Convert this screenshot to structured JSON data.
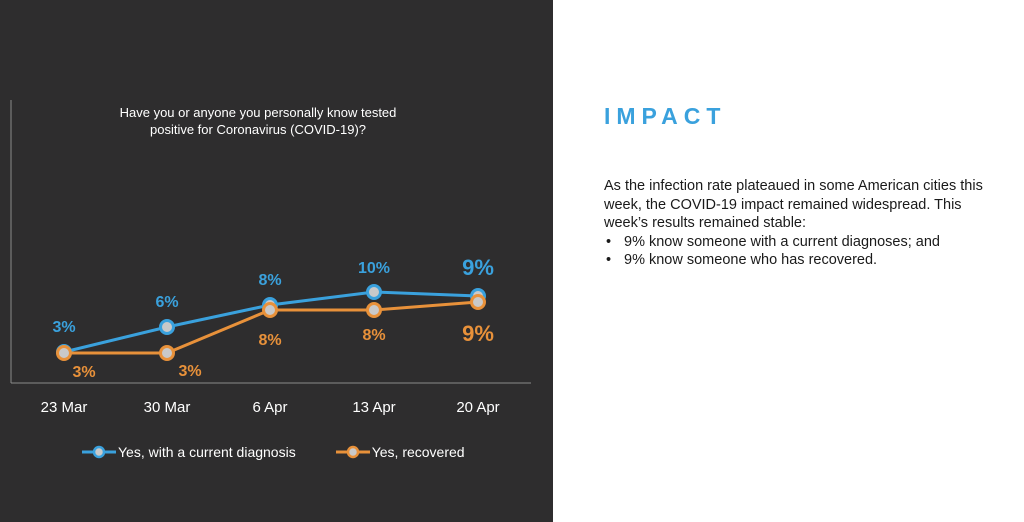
{
  "chart_data": {
    "type": "line",
    "title": "Have you or anyone you personally know tested positive for Coronavirus (COVID-19)?",
    "categories": [
      "23 Mar",
      "30 Mar",
      "6 Apr",
      "13 Apr",
      "20 Apr"
    ],
    "series": [
      {
        "name": "Yes, with a current diagnosis",
        "values": [
          3,
          6,
          8,
          10,
          9
        ],
        "labels": [
          "3%",
          "6%",
          "8%",
          "10%",
          "9%"
        ],
        "color": "#3aa1dd"
      },
      {
        "name": "Yes, recovered",
        "values": [
          3,
          3,
          8,
          8,
          9
        ],
        "labels": [
          "3%",
          "3%",
          "8%",
          "8%",
          "9%"
        ],
        "color": "#e8913a"
      }
    ],
    "legend_position": "bottom",
    "grid": false
  },
  "impact": {
    "heading": "IMPACT",
    "paragraph": "As the infection rate plateaued in some American cities this week, the COVID-19 impact remained widespread.  This week’s results remained stable:",
    "bullets": [
      "9% know someone with a current diagnoses; and",
      "9% know someone who has recovered."
    ]
  },
  "colors": {
    "panel_background": "#2e2d2e",
    "accent_blue": "#3aa1dd",
    "accent_orange": "#e8913a",
    "marker_fill": "#c9c9c9"
  }
}
